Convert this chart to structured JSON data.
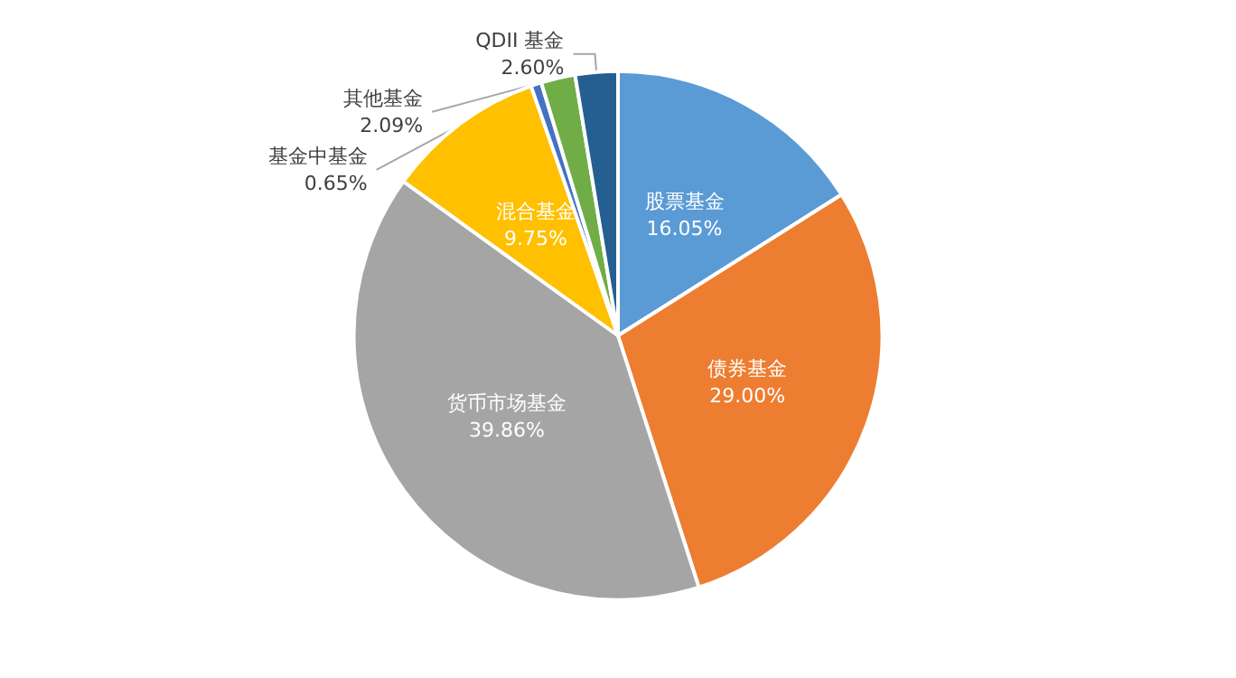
{
  "chart_data": {
    "type": "pie",
    "categories": [
      "股票基金",
      "债券基金",
      "货币市场基金",
      "混合基金",
      "基金中基金",
      "其他基金",
      "QDII 基金"
    ],
    "values": [
      16.05,
      29.0,
      39.86,
      9.75,
      0.65,
      2.09,
      2.6
    ],
    "value_labels": [
      "16.05%",
      "29.00%",
      "39.86%",
      "9.75%",
      "0.65%",
      "2.09%",
      "2.60%"
    ],
    "colors": [
      "#5b9bd5",
      "#ed7d31",
      "#a5a5a5",
      "#ffc000",
      "#4472c4",
      "#70ad47",
      "#255e91"
    ],
    "legend": false
  }
}
